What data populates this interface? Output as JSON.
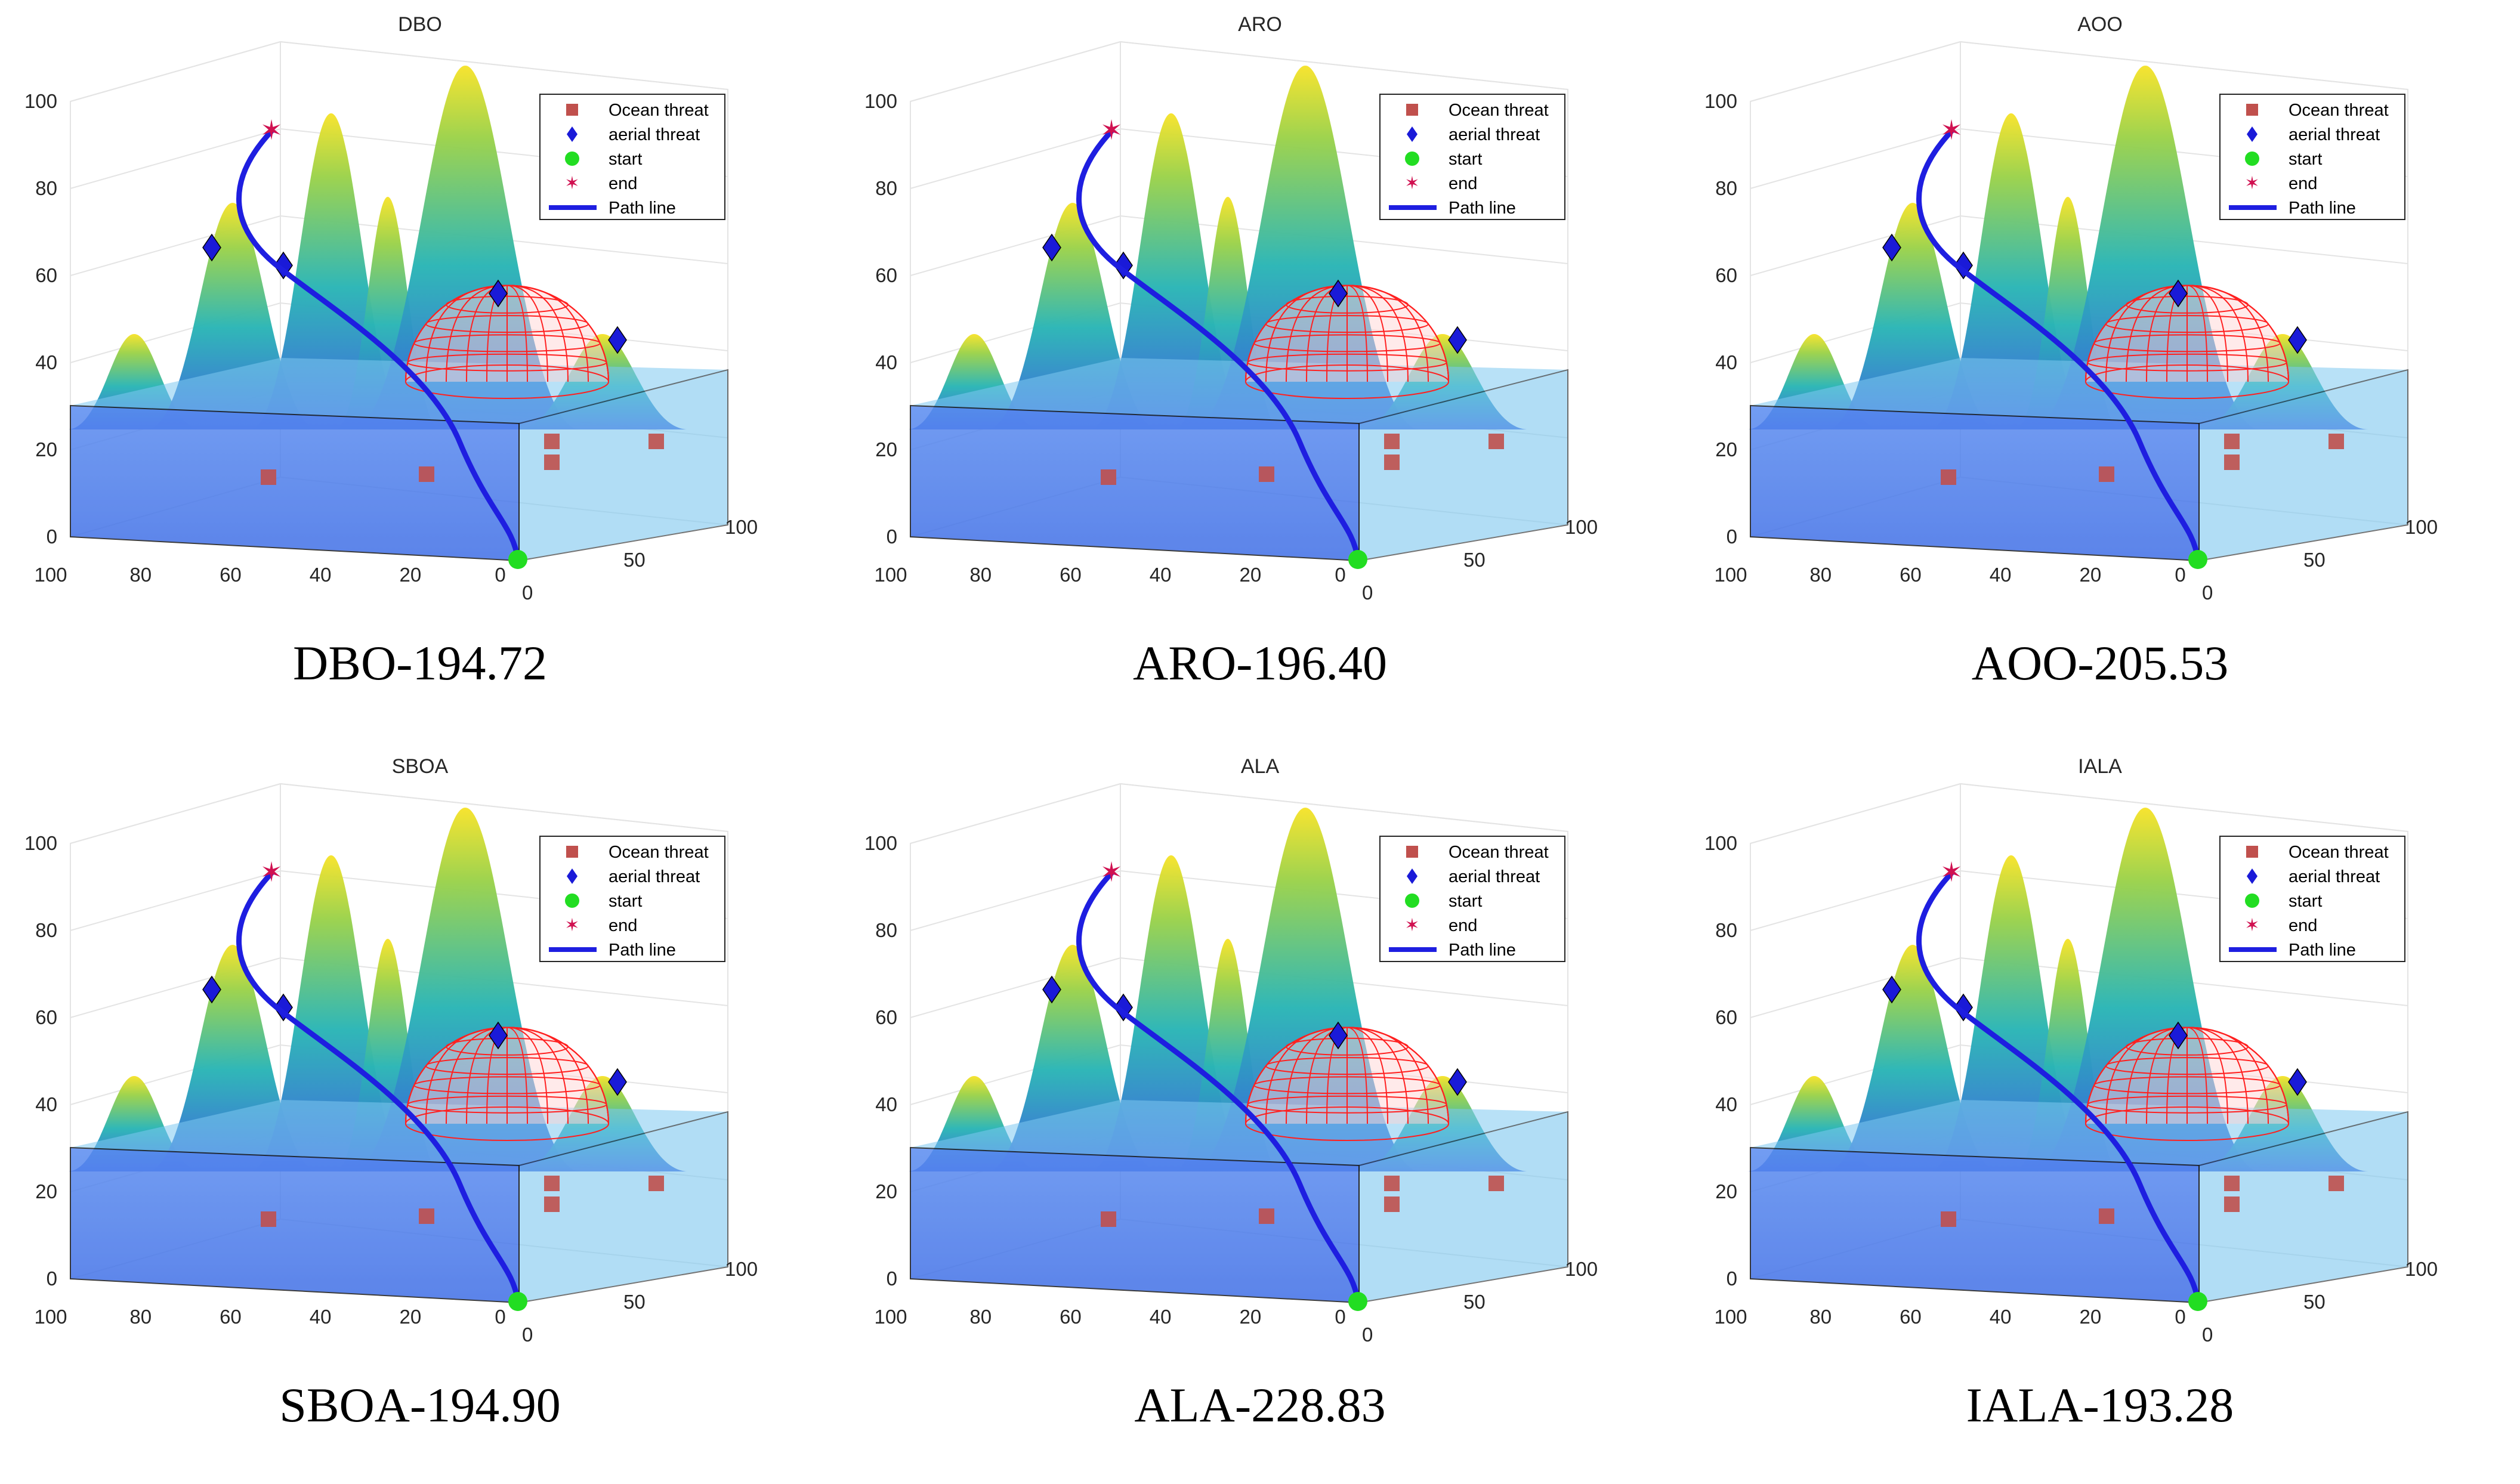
{
  "legend": {
    "ocean": "Ocean threat",
    "aerial": "aerial threat",
    "start": "start",
    "end": "end",
    "path": "Path line"
  },
  "colors": {
    "ocean_marker": "#c0504d",
    "aerial_marker": "#1a1ad8",
    "start_marker": "#22dd22",
    "end_marker": "#d01050",
    "path": "#1e1ee0",
    "dome": "#ff2020",
    "water": "#7ec8f0",
    "surface_low": "#3b5fe0",
    "surface_mid": "#2ab5b5",
    "surface_high": "#f7e32a"
  },
  "chart_data": [
    {
      "type": "3d-surface",
      "title": "DBO",
      "caption": "DBO-194.72",
      "xticks": [
        "100",
        "80",
        "60",
        "40",
        "20",
        "0"
      ],
      "yticks": [
        "0",
        "50",
        "100"
      ],
      "zticks": [
        "0",
        "20",
        "40",
        "60",
        "80",
        "100"
      ],
      "zlim": [
        0,
        100
      ],
      "path_length": 194.72
    },
    {
      "type": "3d-surface",
      "title": "ARO",
      "caption": "ARO-196.40",
      "xticks": [
        "100",
        "80",
        "60",
        "40",
        "20",
        "0"
      ],
      "yticks": [
        "0",
        "50",
        "100"
      ],
      "zticks": [
        "0",
        "20",
        "40",
        "60",
        "80",
        "100"
      ],
      "zlim": [
        0,
        100
      ],
      "path_length": 196.4
    },
    {
      "type": "3d-surface",
      "title": "AOO",
      "caption": "AOO-205.53",
      "xticks": [
        "100",
        "80",
        "60",
        "40",
        "20",
        "0"
      ],
      "yticks": [
        "0",
        "50",
        "100"
      ],
      "zticks": [
        "0",
        "20",
        "40",
        "60",
        "80",
        "100"
      ],
      "zlim": [
        0,
        100
      ],
      "path_length": 205.53
    },
    {
      "type": "3d-surface",
      "title": "SBOA",
      "caption": "SBOA-194.90",
      "xticks": [
        "100",
        "80",
        "60",
        "40",
        "20",
        "0"
      ],
      "yticks": [
        "0",
        "50",
        "100"
      ],
      "zticks": [
        "0",
        "20",
        "40",
        "60",
        "80",
        "100"
      ],
      "zlim": [
        0,
        100
      ],
      "path_length": 194.9
    },
    {
      "type": "3d-surface",
      "title": "ALA",
      "caption": "ALA-228.83",
      "xticks": [
        "100",
        "80",
        "60",
        "40",
        "20",
        "0"
      ],
      "yticks": [
        "0",
        "50",
        "100"
      ],
      "zticks": [
        "0",
        "20",
        "40",
        "60",
        "80",
        "100"
      ],
      "zlim": [
        0,
        100
      ],
      "path_length": 228.83
    },
    {
      "type": "3d-surface",
      "title": "IALA",
      "caption": "IALA-193.28",
      "xticks": [
        "100",
        "80",
        "60",
        "40",
        "20",
        "0"
      ],
      "yticks": [
        "0",
        "50",
        "100"
      ],
      "zticks": [
        "0",
        "20",
        "40",
        "60",
        "80",
        "100"
      ],
      "zlim": [
        0,
        100
      ],
      "path_length": 193.28
    }
  ]
}
